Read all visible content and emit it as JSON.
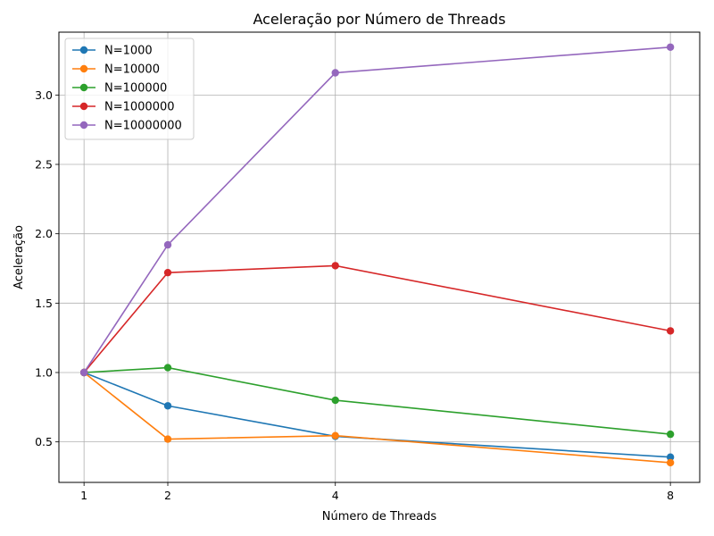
{
  "chart_data": {
    "type": "line",
    "title": "Aceleração por Número de Threads",
    "xlabel": "Número de Threads",
    "ylabel": "Aceleração",
    "x": [
      1,
      2,
      4,
      8
    ],
    "x_tick_labels": [
      "1",
      "2",
      "4",
      "8"
    ],
    "y_tick_labels": [
      "0.5",
      "1.0",
      "1.5",
      "2.0",
      "2.5",
      "3.0"
    ],
    "y_ticks": [
      0.5,
      1.0,
      1.5,
      2.0,
      2.5,
      3.0
    ],
    "xlim": [
      0.7,
      8.35
    ],
    "ylim": [
      0.208,
      3.453
    ],
    "grid": true,
    "legend_position": "top-left",
    "marker": "circle",
    "series": [
      {
        "name": "N=1000",
        "color": "#1f77b4",
        "values": [
          1.0,
          0.76,
          0.54,
          0.39
        ]
      },
      {
        "name": "N=10000",
        "color": "#ff7f0e",
        "values": [
          1.0,
          0.52,
          0.545,
          0.35
        ]
      },
      {
        "name": "N=100000",
        "color": "#2ca02c",
        "values": [
          1.0,
          1.035,
          0.8,
          0.555
        ]
      },
      {
        "name": "N=1000000",
        "color": "#d62728",
        "values": [
          1.0,
          1.72,
          1.77,
          1.3
        ]
      },
      {
        "name": "N=10000000",
        "color": "#9467bd",
        "values": [
          1.0,
          1.92,
          3.16,
          3.345
        ]
      }
    ]
  }
}
